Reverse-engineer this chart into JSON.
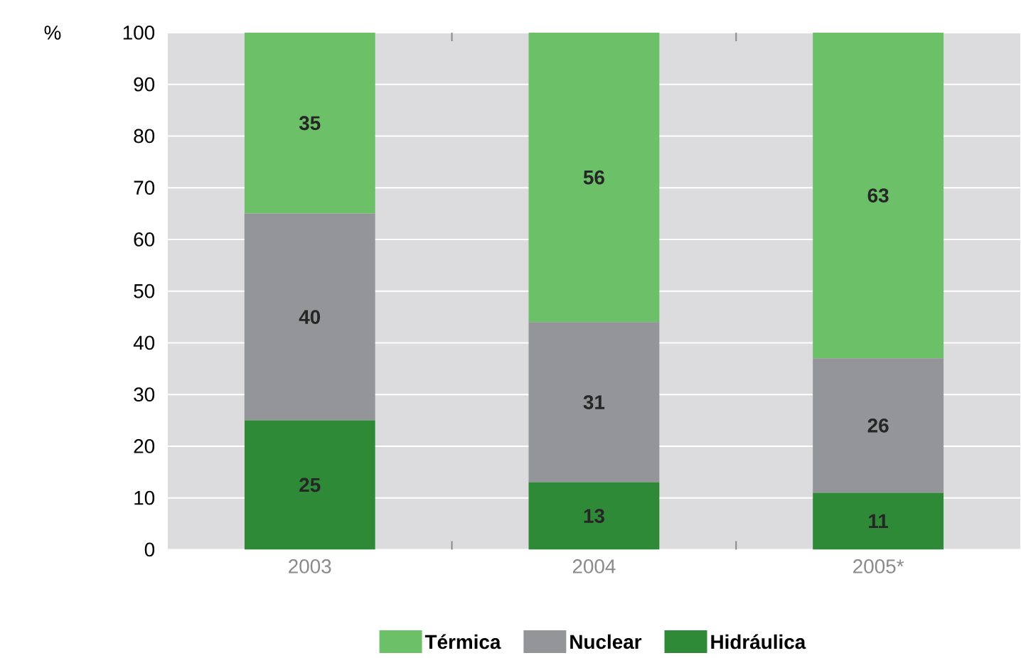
{
  "chart_data": {
    "type": "bar",
    "stacked": true,
    "ylabel": "%",
    "categories": [
      "2003",
      "2004",
      "2005*"
    ],
    "series": [
      {
        "name": "Hidráulica",
        "color": "#2f8a37",
        "values": [
          25,
          13,
          11
        ]
      },
      {
        "name": "Nuclear",
        "color": "#939598",
        "values": [
          40,
          31,
          26
        ]
      },
      {
        "name": "Térmica",
        "color": "#6cc067",
        "values": [
          35,
          56,
          63
        ]
      }
    ],
    "ylim": [
      0,
      100
    ],
    "yticks": [
      0,
      10,
      20,
      30,
      40,
      50,
      60,
      70,
      80,
      90,
      100
    ],
    "grid": "y",
    "legend": "bottom",
    "data_labels": true
  }
}
